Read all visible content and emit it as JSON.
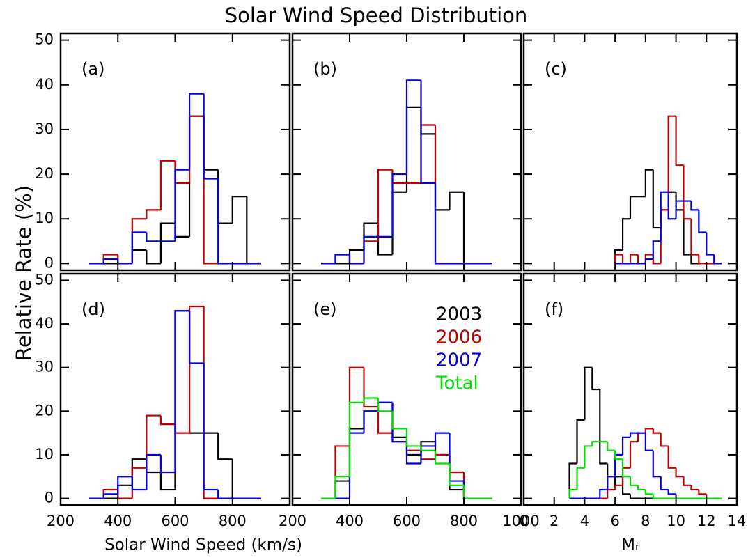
{
  "title": "Solar Wind Speed Distribution",
  "y_label": "Relative Rate (%)",
  "x_label": "Solar Wind Speed (km/s)",
  "chart_data": [
    {
      "type": "histogram",
      "label": "(a)",
      "xlim": [
        200,
        1000
      ],
      "xticks": [
        200,
        400,
        600,
        800
      ],
      "ylim": [
        -1.5,
        51.5
      ],
      "yticks": [
        0,
        10,
        20,
        30,
        40,
        50
      ],
      "bins": [
        300,
        350,
        400,
        450,
        500,
        550,
        600,
        650,
        700,
        750,
        800,
        850,
        900
      ],
      "series": [
        {
          "color": "#000000",
          "values": [
            0,
            0,
            0,
            3,
            0,
            9,
            6,
            33,
            21,
            9,
            15,
            0
          ]
        },
        {
          "color": "#c00000",
          "values": [
            0,
            2,
            0,
            10,
            12,
            23,
            18,
            33,
            0,
            0,
            0,
            0
          ]
        },
        {
          "color": "#0000e0",
          "values": [
            0,
            1,
            0,
            7,
            5,
            5,
            21,
            38,
            19,
            0,
            0,
            0
          ]
        }
      ]
    },
    {
      "type": "histogram",
      "label": "(b)",
      "xlim": [
        200,
        1000
      ],
      "xticks": [
        200,
        400,
        600,
        800,
        1000
      ],
      "ylim": [
        -1.5,
        51.5
      ],
      "yticks": [
        0,
        10,
        20,
        30,
        40,
        50
      ],
      "bins": [
        300,
        350,
        400,
        450,
        500,
        550,
        600,
        650,
        700,
        750,
        800,
        850,
        900
      ],
      "series": [
        {
          "color": "#000000",
          "values": [
            0,
            0,
            3,
            9,
            2,
            16,
            35,
            29,
            12,
            16,
            0,
            0
          ]
        },
        {
          "color": "#c00000",
          "values": [
            0,
            2,
            0,
            5,
            21,
            18,
            18,
            31,
            0,
            0,
            0,
            0
          ]
        },
        {
          "color": "#0000e0",
          "values": [
            0,
            2,
            0,
            6,
            6,
            20,
            41,
            18,
            0,
            0,
            0,
            0
          ]
        }
      ]
    },
    {
      "type": "histogram",
      "label": "(c)",
      "xlim": [
        0,
        14
      ],
      "xticks": [
        0,
        2,
        4,
        6,
        8,
        10,
        12,
        14
      ],
      "ylim": [
        -1.5,
        51.5
      ],
      "yticks": [
        0,
        10,
        20,
        30,
        40,
        50
      ],
      "bins": [
        6,
        6.5,
        7,
        7.5,
        8,
        8.5,
        9,
        9.5,
        10,
        10.5,
        11,
        11.5,
        12,
        12.5,
        13
      ],
      "series": [
        {
          "color": "#000000",
          "values": [
            3,
            10,
            15,
            15,
            21,
            8,
            12,
            16,
            12,
            2,
            0,
            0,
            0,
            0
          ]
        },
        {
          "color": "#c00000",
          "values": [
            2,
            0,
            2,
            0,
            2,
            0,
            12,
            33,
            22,
            10,
            2,
            0,
            0,
            0
          ]
        },
        {
          "color": "#0000e0",
          "values": [
            0,
            0,
            0,
            0,
            1,
            5,
            16,
            10,
            14,
            14,
            12,
            7,
            2,
            0
          ]
        }
      ]
    },
    {
      "type": "histogram",
      "label": "(d)",
      "xlim": [
        200,
        1000
      ],
      "xticks": [
        200,
        400,
        600,
        800
      ],
      "ylim": [
        -1.5,
        51.5
      ],
      "yticks": [
        0,
        10,
        20,
        30,
        40,
        50
      ],
      "bins": [
        300,
        350,
        400,
        450,
        500,
        550,
        600,
        650,
        700,
        750,
        800,
        850,
        900
      ],
      "series": [
        {
          "color": "#000000",
          "values": [
            0,
            0,
            3,
            9,
            6,
            2,
            43,
            15,
            15,
            9,
            0,
            0
          ]
        },
        {
          "color": "#c00000",
          "values": [
            0,
            2,
            0,
            7,
            19,
            17,
            15,
            44,
            0,
            0,
            0,
            0
          ]
        },
        {
          "color": "#0000e0",
          "values": [
            0,
            1,
            5,
            2,
            10,
            6,
            43,
            31,
            2,
            0,
            0,
            0
          ]
        }
      ]
    },
    {
      "type": "histogram",
      "label": "(e)",
      "xlim": [
        200,
        1000
      ],
      "xticks": [
        200,
        400,
        600,
        800,
        1000
      ],
      "ylim": [
        -1.5,
        51.5
      ],
      "yticks": [
        0,
        10,
        20,
        30,
        40,
        50
      ],
      "bins": [
        300,
        350,
        400,
        450,
        500,
        550,
        600,
        650,
        700,
        750,
        800,
        850,
        900
      ],
      "series": [
        {
          "name": "2003",
          "color": "#000000",
          "values": [
            0,
            4,
            16,
            20,
            22,
            14,
            10,
            13,
            10,
            2,
            0,
            0
          ]
        },
        {
          "name": "2006",
          "color": "#c00000",
          "values": [
            0,
            12,
            30,
            21,
            15,
            13,
            11,
            9,
            10,
            6,
            0,
            0
          ]
        },
        {
          "name": "2007",
          "color": "#0000e0",
          "values": [
            0,
            0,
            15,
            20,
            22,
            13,
            8,
            12,
            15,
            4,
            0,
            0
          ]
        },
        {
          "name": "Total",
          "color": "#00e000",
          "values": [
            0,
            5,
            22,
            23,
            20,
            16,
            12,
            11,
            8,
            3,
            0,
            0
          ]
        }
      ]
    },
    {
      "type": "histogram",
      "label": "(f)",
      "xlabel": "Mᵣ",
      "xlim": [
        0,
        14
      ],
      "xticks": [
        0,
        2,
        4,
        6,
        8,
        10,
        12,
        14
      ],
      "ylim": [
        -1.5,
        51.5
      ],
      "yticks": [
        0,
        10,
        20,
        30,
        40,
        50
      ],
      "bins": [
        3,
        3.5,
        4,
        4.5,
        5,
        5.5,
        6,
        6.5,
        7,
        7.5,
        8,
        8.5,
        9,
        9.5,
        10,
        10.5,
        11,
        11.5,
        12,
        12.5,
        13
      ],
      "series": [
        {
          "color": "#000000",
          "values": [
            8,
            18,
            30,
            25,
            8,
            2,
            5,
            1,
            0,
            0,
            0,
            0,
            0,
            0,
            0,
            0,
            0,
            0,
            0,
            0
          ]
        },
        {
          "color": "#c00000",
          "values": [
            0,
            0,
            0,
            0,
            0,
            2,
            3,
            7,
            13,
            15,
            16,
            15,
            12,
            7,
            5,
            3,
            2,
            1,
            0,
            0
          ]
        },
        {
          "color": "#0000e0",
          "values": [
            0,
            0,
            0,
            0,
            2,
            5,
            10,
            14,
            15,
            15,
            11,
            5,
            2,
            1,
            0,
            0,
            0,
            0,
            0,
            0
          ]
        },
        {
          "color": "#00e000",
          "values": [
            2,
            7,
            12,
            13,
            13,
            11,
            9,
            5,
            3,
            2,
            1,
            0,
            0,
            0,
            0,
            0,
            0,
            0,
            0,
            0
          ]
        }
      ]
    }
  ]
}
